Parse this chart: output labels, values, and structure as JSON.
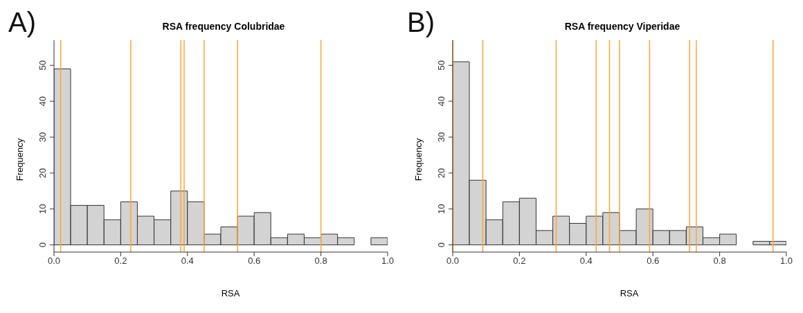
{
  "chart_data": [
    {
      "type": "histogram",
      "title": "RSA frequency Colubridae",
      "xlabel": "RSA",
      "ylabel": "Frequency",
      "annotations": [
        "A)"
      ],
      "bins": [
        0,
        0.05,
        0.1,
        0.15,
        0.2,
        0.25,
        0.3,
        0.35,
        0.4,
        0.45,
        0.5,
        0.55,
        0.6,
        0.65,
        0.7,
        0.75,
        0.8,
        0.85,
        0.9,
        0.95,
        1.0
      ],
      "values": [
        49,
        11,
        11,
        7,
        12,
        8,
        7,
        15,
        12,
        3,
        5,
        8,
        9,
        2,
        3,
        2,
        3,
        2,
        0,
        2
      ],
      "color": "#d3d3d3",
      "xlim": [
        0,
        1
      ],
      "ylim": [
        -2,
        57
      ],
      "xticks": [
        {
          "value": 0,
          "label": "0.0"
        },
        {
          "value": 0.2,
          "label": "0.2"
        },
        {
          "value": 0.4,
          "label": "0.4"
        },
        {
          "value": 0.6,
          "label": "0.6"
        },
        {
          "value": 0.8,
          "label": "0.8"
        },
        {
          "value": 1,
          "label": "1.0"
        }
      ],
      "yticks": [
        0,
        10,
        20,
        30,
        40,
        50
      ],
      "grid": false,
      "ref_lines": [
        {
          "axis": "x",
          "value": 0.02,
          "color": "#ffa533"
        },
        {
          "axis": "x",
          "value": 0.23,
          "color": "#ffa533"
        },
        {
          "axis": "x",
          "value": 0.38,
          "color": "#ffa533"
        },
        {
          "axis": "x",
          "value": 0.39,
          "color": "#ffa533"
        },
        {
          "axis": "x",
          "value": 0.45,
          "color": "#ffa533"
        },
        {
          "axis": "x",
          "value": 0.55,
          "color": "#ffa533"
        },
        {
          "axis": "x",
          "value": 0.8,
          "color": "#ffa533"
        }
      ]
    },
    {
      "type": "histogram",
      "title": "RSA frequency Viperidae",
      "xlabel": "RSA",
      "ylabel": "Frequency",
      "annotations": [
        "B)"
      ],
      "bins": [
        0,
        0.05,
        0.1,
        0.15,
        0.2,
        0.25,
        0.3,
        0.35,
        0.4,
        0.45,
        0.5,
        0.55,
        0.6,
        0.65,
        0.7,
        0.75,
        0.8,
        0.85,
        0.9,
        0.95,
        1.0
      ],
      "values": [
        51,
        18,
        7,
        12,
        13,
        4,
        8,
        6,
        8,
        9,
        4,
        10,
        4,
        4,
        5,
        2,
        3,
        0,
        1,
        1
      ],
      "color": "#d3d3d3",
      "xlim": [
        0,
        1
      ],
      "ylim": [
        -2,
        57
      ],
      "xticks": [
        {
          "value": 0,
          "label": "0.0"
        },
        {
          "value": 0.2,
          "label": "0.2"
        },
        {
          "value": 0.4,
          "label": "0.4"
        },
        {
          "value": 0.6,
          "label": "0.6"
        },
        {
          "value": 0.8,
          "label": "0.8"
        },
        {
          "value": 1,
          "label": "1.0"
        }
      ],
      "yticks": [
        0,
        10,
        20,
        30,
        40,
        50
      ],
      "grid": false,
      "ref_lines": [
        {
          "axis": "x",
          "value": 0,
          "color": "#ffa533"
        },
        {
          "axis": "x",
          "value": 0.09,
          "color": "#ffa533"
        },
        {
          "axis": "x",
          "value": 0.31,
          "color": "#ffa533"
        },
        {
          "axis": "x",
          "value": 0.43,
          "color": "#ffa533"
        },
        {
          "axis": "x",
          "value": 0.47,
          "color": "#ffa533"
        },
        {
          "axis": "x",
          "value": 0.5,
          "color": "#ffa533"
        },
        {
          "axis": "x",
          "value": 0.59,
          "color": "#ffa533"
        },
        {
          "axis": "x",
          "value": 0.71,
          "color": "#ffa533"
        },
        {
          "axis": "x",
          "value": 0.73,
          "color": "#ffa533"
        },
        {
          "axis": "x",
          "value": 0.96,
          "color": "#ffa533"
        }
      ]
    }
  ]
}
